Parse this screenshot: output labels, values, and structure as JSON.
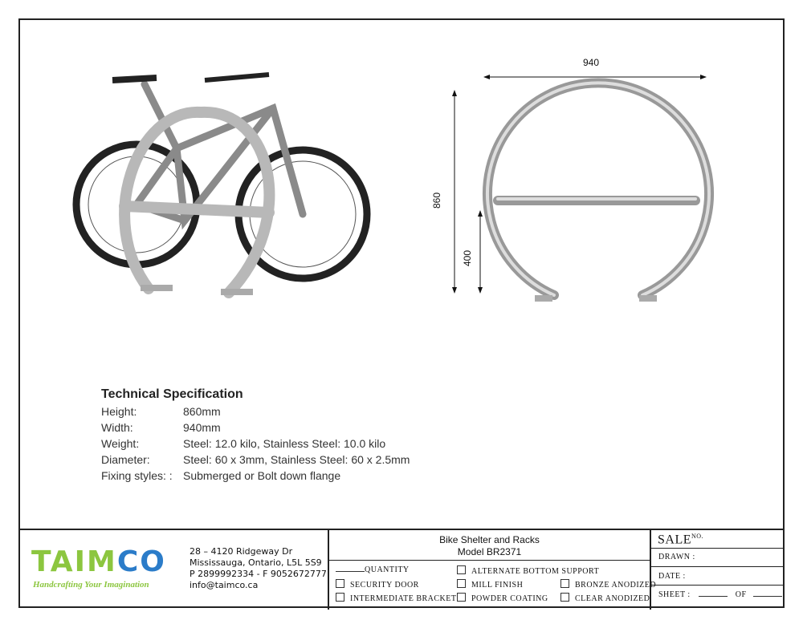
{
  "drawing": {
    "width_label": "940",
    "height_label": "860",
    "bar_height_label": "400"
  },
  "spec": {
    "title": "Technical Specification",
    "rows": [
      {
        "label": "Height:",
        "value": "860mm"
      },
      {
        "label": "Width:",
        "value": "940mm"
      },
      {
        "label": "Weight:",
        "value": "Steel: 12.0 kilo, Stainless Steel: 10.0 kilo"
      },
      {
        "label": "Diameter:",
        "value": "Steel: 60 x 3mm, Stainless Steel: 60 x 2.5mm"
      },
      {
        "label": "Fixing styles: :",
        "value": "Submerged or Bolt down flange"
      }
    ]
  },
  "company": {
    "logo": "TAIMCO",
    "tagline": "Handcrafting Your Imagination",
    "colors": {
      "green": "#8cc63f",
      "blue": "#2b7cc9"
    },
    "address1": "28 – 4120 Ridgeway Dr",
    "address2": "Mississauga, Ontario, L5L 5S9",
    "phone": "P 2899992334 - F 9052672777",
    "email": "info@taimco.ca"
  },
  "titleblock": {
    "title": "Bike Shelter and Racks",
    "model": "Model BR2371",
    "quantity": "QUANTITY",
    "options": {
      "security_door": "SECURITY DOOR",
      "intermediate_bracket": "INTERMEDIATE BRACKET",
      "alt_bottom": "ALTERNATE BOTTOM SUPPORT",
      "mill_finish": "MILL FINISH",
      "powder_coating": "POWDER COATING",
      "bronze": "BRONZE ANODIZED",
      "clear": "CLEAR ANODIZED"
    },
    "sale": "SALE",
    "sale_no": "NO.",
    "drawn": "DRAWN :",
    "date": "DATE :",
    "sheet": "SHEET :",
    "of": "OF"
  }
}
